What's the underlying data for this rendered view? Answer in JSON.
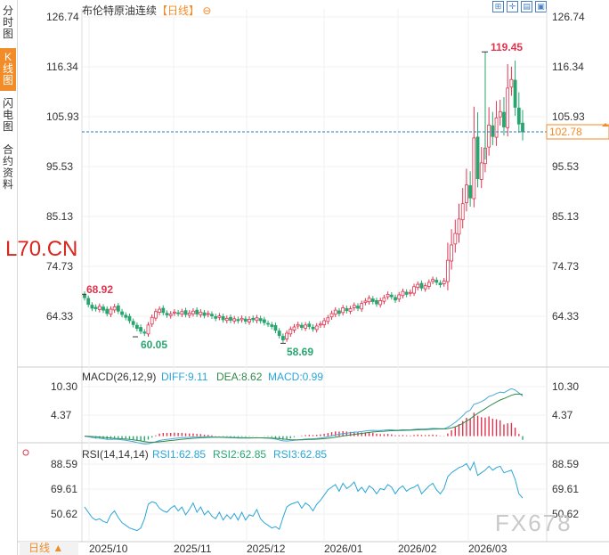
{
  "sidebar": {
    "tabs": [
      {
        "label": "分时图",
        "active": false
      },
      {
        "label": "K线图",
        "active": true
      },
      {
        "label": "闪电图",
        "active": false
      },
      {
        "label": "合约资料",
        "active": false
      }
    ]
  },
  "header": {
    "title": "布伦特原油连续",
    "period": "【日线】",
    "collapse_icon": "circle-minus-icon",
    "tools": [
      "grid-icon",
      "crosshair-icon",
      "export-icon",
      "fullscreen-icon"
    ]
  },
  "watermarks": {
    "left": "L70.CN",
    "bottom_right": "FX678"
  },
  "footer": {
    "period_button": "日线 ▲"
  },
  "colors": {
    "up": "#e0334e",
    "down": "#27a66f",
    "accent": "#f28c28",
    "macd_line": "#4aa8d8",
    "dea_line": "#2f8a4a",
    "rsi_line": "#2aa5d8",
    "last_price_line": "#2a7ab8"
  },
  "chart_data": [
    {
      "type": "candlestick",
      "name": "布伦特原油连续 日线",
      "ylim": [
        56,
        127.5
      ],
      "y_ticks": [
        "126.74",
        "116.34",
        "105.93",
        "95.53",
        "85.13",
        "74.73",
        "64.33"
      ],
      "x_ticks": [
        "2025/10",
        "2025/11",
        "2025/12",
        "2026/01",
        "2026/02",
        "2026/03"
      ],
      "last_price": "102.78",
      "annotations": {
        "high_left": "68.92",
        "low_1": "60.05",
        "low_2": "58.69",
        "high_max": "119.45"
      },
      "closes": [
        68.2,
        66.8,
        66.0,
        65.9,
        66.4,
        65.6,
        64.9,
        65.8,
        66.3,
        65.4,
        64.7,
        64.1,
        63.4,
        62.6,
        61.8,
        61.2,
        60.8,
        62.5,
        64.1,
        65.3,
        65.8,
        65.1,
        64.6,
        64.8,
        65.2,
        64.9,
        65.3,
        64.7,
        65.0,
        65.4,
        64.8,
        65.2,
        64.5,
        64.9,
        64.4,
        63.9,
        64.4,
        63.6,
        63.9,
        63.5,
        63.8,
        63.4,
        63.9,
        63.3,
        63.7,
        63.6,
        64.0,
        63.4,
        63.0,
        62.7,
        62.2,
        61.4,
        60.3,
        59.4,
        60.8,
        61.6,
        62.1,
        62.6,
        62.0,
        62.5,
        62.2,
        61.7,
        62.3,
        62.7,
        63.4,
        64.0,
        64.9,
        65.6,
        64.9,
        66.1,
        65.5,
        65.9,
        66.6,
        66.0,
        67.0,
        67.5,
        68.1,
        67.4,
        66.9,
        67.6,
        68.2,
        68.9,
        68.4,
        67.7,
        68.8,
        69.5,
        68.9,
        69.3,
        70.5,
        71.0,
        70.2,
        70.7,
        71.4,
        72.0,
        71.4,
        70.9,
        71.7,
        76.0,
        79.2,
        81.6,
        84.6,
        87.8,
        91.7,
        89.0,
        101.5,
        93.0,
        96.3,
        99.4,
        104.2,
        101.8,
        105.7,
        107.0,
        103.8,
        111.9,
        113.7,
        107.9,
        104.4,
        102.78
      ],
      "candles_note": "opens are derived from previous close; ranges approximate"
    },
    {
      "type": "bar",
      "name": "MACD",
      "label": "MACD(26,12,9)",
      "diff_label": "DIFF:9.11",
      "dea_label": "DEA:8.62",
      "macd_label": "MACD:0.99",
      "y_ticks": [
        "10.30",
        "4.37"
      ],
      "ylim": [
        -2.5,
        11.5
      ]
    },
    {
      "type": "line",
      "name": "RSI",
      "label": "RSI(14,14,14)",
      "rsi1_label": "RSI1:62.85",
      "rsi2_label": "RSI2:62.85",
      "rsi3_label": "RSI3:62.85",
      "y_ticks": [
        "88.59",
        "69.61",
        "50.62"
      ],
      "ylim": [
        38,
        97
      ],
      "values": [
        56,
        52,
        48,
        46,
        47,
        45,
        44,
        50,
        53,
        48,
        44,
        42,
        40,
        39,
        38,
        40,
        47,
        58,
        60,
        59,
        55,
        53,
        52,
        55,
        57,
        53,
        56,
        50,
        54,
        59,
        52,
        56,
        50,
        53,
        49,
        47,
        52,
        46,
        50,
        47,
        51,
        46,
        52,
        46,
        50,
        49,
        54,
        47,
        44,
        42,
        40,
        41,
        39,
        48,
        56,
        58,
        59,
        60,
        55,
        59,
        57,
        53,
        58,
        61,
        65,
        69,
        71,
        73,
        68,
        74,
        70,
        72,
        75,
        68,
        71,
        67,
        72,
        70,
        66,
        70,
        69,
        73,
        71,
        66,
        70,
        72,
        68,
        70,
        71,
        73,
        66,
        69,
        72,
        74,
        69,
        66,
        70,
        79,
        82,
        84,
        86,
        87,
        89,
        84,
        90,
        80,
        82,
        84,
        87,
        84,
        86,
        87,
        82,
        83,
        84,
        77,
        66,
        62.85
      ]
    }
  ]
}
